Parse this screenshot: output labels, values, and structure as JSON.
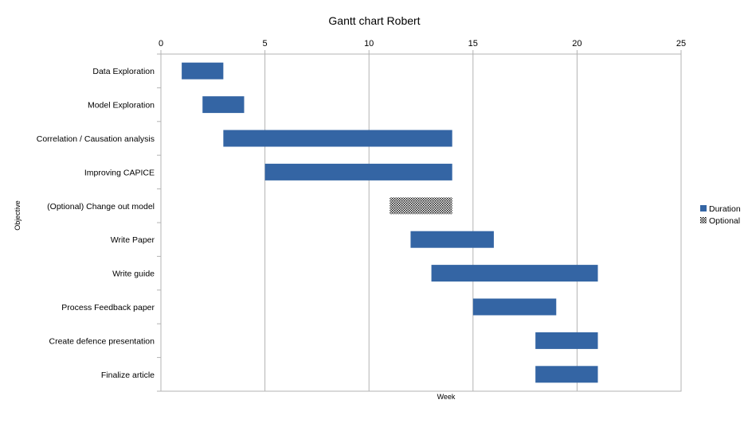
{
  "chart_data": {
    "type": "bar",
    "orientation": "horizontal-gantt",
    "title": "Gantt chart Robert",
    "xlabel": "Week",
    "ylabel": "Objective",
    "xlim": [
      0,
      25
    ],
    "xticks": [
      0,
      5,
      10,
      15,
      20,
      25
    ],
    "x_axis_position": "top",
    "grid": true,
    "legend_position": "right",
    "categories": [
      "Data Exploration",
      "Model Exploration",
      "Correlation / Causation analysis",
      "Improving CAPICE",
      "(Optional)  Change out model",
      "Write Paper",
      "Write guide",
      "Process Feedback paper",
      "Create defence presentation",
      "Finalize article"
    ],
    "tasks": [
      {
        "start": 1,
        "end": 3,
        "series": "Duration"
      },
      {
        "start": 2,
        "end": 4,
        "series": "Duration"
      },
      {
        "start": 3,
        "end": 14,
        "series": "Duration"
      },
      {
        "start": 5,
        "end": 14,
        "series": "Duration"
      },
      {
        "start": 11,
        "end": 14,
        "series": "Optional"
      },
      {
        "start": 12,
        "end": 16,
        "series": "Duration"
      },
      {
        "start": 13,
        "end": 21,
        "series": "Duration"
      },
      {
        "start": 15,
        "end": 19,
        "series": "Duration"
      },
      {
        "start": 18,
        "end": 21,
        "series": "Duration"
      },
      {
        "start": 18,
        "end": 21,
        "series": "Duration"
      }
    ],
    "series": [
      {
        "name": "Duration",
        "color": "#3465a4",
        "pattern": "solid"
      },
      {
        "name": "Optional",
        "color": "#000000",
        "pattern": "dotted"
      }
    ]
  }
}
